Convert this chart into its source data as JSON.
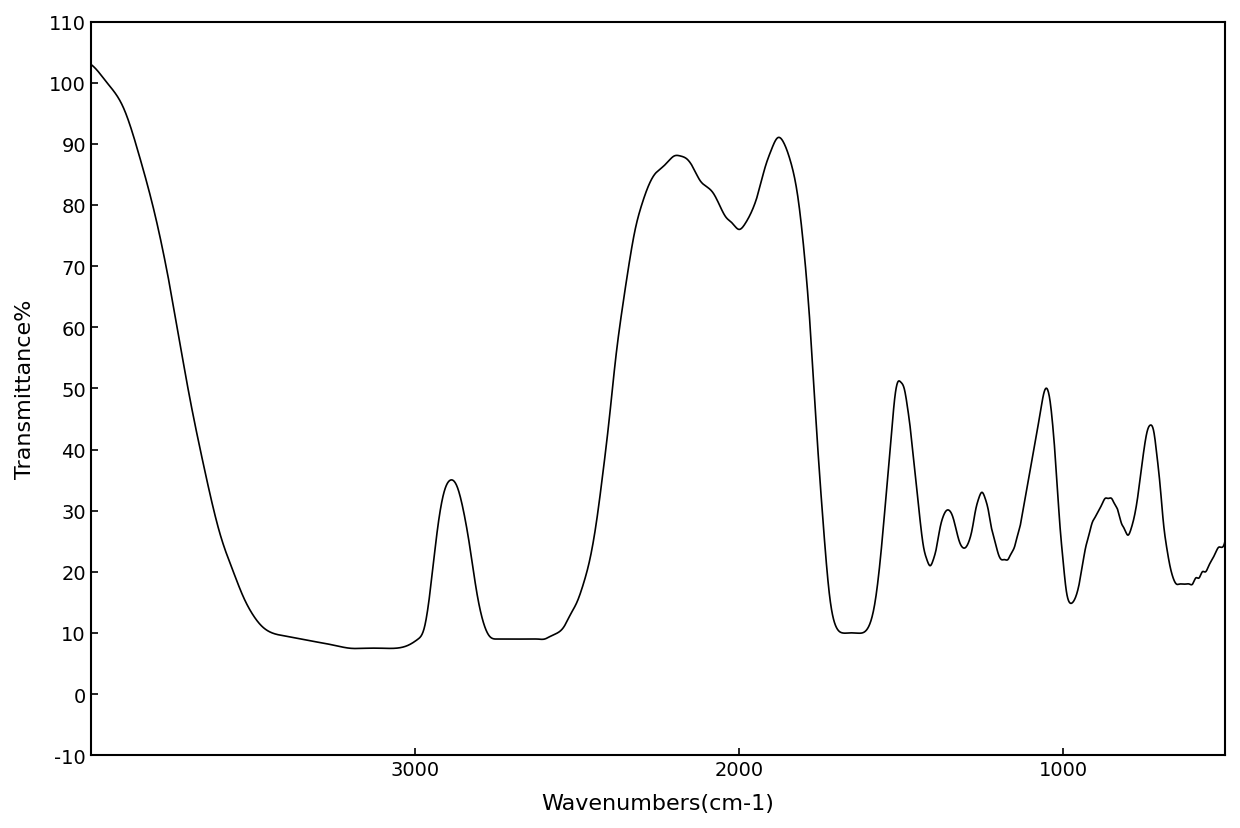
{
  "xlabel": "Wavenumbers(cm-1)",
  "ylabel": "Transmittance%",
  "xlim": [
    4000,
    500
  ],
  "ylim": [
    -10,
    110
  ],
  "yticks": [
    -10,
    0,
    10,
    20,
    30,
    40,
    50,
    60,
    70,
    80,
    90,
    100,
    110
  ],
  "xticks": [
    3000,
    2000,
    1000
  ],
  "line_color": "#000000",
  "background_color": "#ffffff",
  "keypoints": [
    [
      4000,
      103
    ],
    [
      3980,
      102
    ],
    [
      3950,
      100
    ],
    [
      3900,
      96
    ],
    [
      3850,
      88
    ],
    [
      3800,
      78
    ],
    [
      3750,
      65
    ],
    [
      3700,
      50
    ],
    [
      3650,
      37
    ],
    [
      3600,
      26
    ],
    [
      3560,
      20
    ],
    [
      3530,
      16
    ],
    [
      3500,
      13
    ],
    [
      3470,
      11
    ],
    [
      3440,
      10
    ],
    [
      3400,
      9.5
    ],
    [
      3350,
      9
    ],
    [
      3300,
      8.5
    ],
    [
      3250,
      8
    ],
    [
      3200,
      7.5
    ],
    [
      3150,
      7.5
    ],
    [
      3100,
      7.5
    ],
    [
      3060,
      7.5
    ],
    [
      3020,
      8
    ],
    [
      2990,
      9
    ],
    [
      2970,
      11
    ],
    [
      2950,
      18
    ],
    [
      2930,
      27
    ],
    [
      2910,
      33
    ],
    [
      2890,
      35
    ],
    [
      2870,
      34
    ],
    [
      2850,
      30
    ],
    [
      2830,
      24
    ],
    [
      2810,
      17
    ],
    [
      2790,
      12
    ],
    [
      2770,
      9.5
    ],
    [
      2750,
      9
    ],
    [
      2730,
      9
    ],
    [
      2700,
      9
    ],
    [
      2680,
      9
    ],
    [
      2660,
      9
    ],
    [
      2640,
      9
    ],
    [
      2620,
      9
    ],
    [
      2600,
      9
    ],
    [
      2580,
      9.5
    ],
    [
      2560,
      10
    ],
    [
      2540,
      11
    ],
    [
      2520,
      13
    ],
    [
      2500,
      15
    ],
    [
      2480,
      18
    ],
    [
      2460,
      22
    ],
    [
      2440,
      28
    ],
    [
      2420,
      36
    ],
    [
      2400,
      45
    ],
    [
      2380,
      55
    ],
    [
      2360,
      63
    ],
    [
      2340,
      70
    ],
    [
      2320,
      76
    ],
    [
      2300,
      80
    ],
    [
      2280,
      83
    ],
    [
      2260,
      85
    ],
    [
      2240,
      86
    ],
    [
      2220,
      87
    ],
    [
      2200,
      88
    ],
    [
      2180,
      88
    ],
    [
      2160,
      87.5
    ],
    [
      2140,
      86
    ],
    [
      2120,
      84
    ],
    [
      2100,
      83
    ],
    [
      2080,
      82
    ],
    [
      2060,
      80
    ],
    [
      2040,
      78
    ],
    [
      2020,
      77
    ],
    [
      2000,
      76
    ],
    [
      1980,
      77
    ],
    [
      1960,
      79
    ],
    [
      1940,
      82
    ],
    [
      1920,
      86
    ],
    [
      1900,
      89
    ],
    [
      1880,
      91
    ],
    [
      1860,
      90
    ],
    [
      1840,
      87
    ],
    [
      1820,
      82
    ],
    [
      1800,
      73
    ],
    [
      1780,
      60
    ],
    [
      1760,
      43
    ],
    [
      1740,
      28
    ],
    [
      1720,
      16
    ],
    [
      1700,
      11
    ],
    [
      1680,
      10
    ],
    [
      1660,
      10
    ],
    [
      1640,
      10
    ],
    [
      1620,
      10
    ],
    [
      1600,
      11
    ],
    [
      1580,
      15
    ],
    [
      1560,
      24
    ],
    [
      1540,
      36
    ],
    [
      1530,
      42
    ],
    [
      1520,
      48
    ],
    [
      1510,
      51
    ],
    [
      1500,
      51
    ],
    [
      1490,
      50
    ],
    [
      1480,
      47
    ],
    [
      1470,
      43
    ],
    [
      1460,
      38
    ],
    [
      1450,
      33
    ],
    [
      1440,
      28
    ],
    [
      1430,
      24
    ],
    [
      1420,
      22
    ],
    [
      1410,
      21
    ],
    [
      1400,
      22
    ],
    [
      1390,
      24
    ],
    [
      1380,
      27
    ],
    [
      1370,
      29
    ],
    [
      1360,
      30
    ],
    [
      1350,
      30
    ],
    [
      1340,
      29
    ],
    [
      1330,
      27
    ],
    [
      1320,
      25
    ],
    [
      1310,
      24
    ],
    [
      1300,
      24
    ],
    [
      1290,
      25
    ],
    [
      1280,
      27
    ],
    [
      1270,
      30
    ],
    [
      1260,
      32
    ],
    [
      1250,
      33
    ],
    [
      1240,
      32
    ],
    [
      1230,
      30
    ],
    [
      1220,
      27
    ],
    [
      1210,
      25
    ],
    [
      1200,
      23
    ],
    [
      1190,
      22
    ],
    [
      1180,
      22
    ],
    [
      1170,
      22
    ],
    [
      1160,
      23
    ],
    [
      1150,
      24
    ],
    [
      1140,
      26
    ],
    [
      1130,
      28
    ],
    [
      1120,
      31
    ],
    [
      1110,
      34
    ],
    [
      1100,
      37
    ],
    [
      1090,
      40
    ],
    [
      1080,
      43
    ],
    [
      1070,
      46
    ],
    [
      1060,
      49
    ],
    [
      1050,
      50
    ],
    [
      1040,
      48
    ],
    [
      1030,
      43
    ],
    [
      1020,
      36
    ],
    [
      1010,
      28
    ],
    [
      1000,
      22
    ],
    [
      990,
      17
    ],
    [
      980,
      15
    ],
    [
      970,
      15
    ],
    [
      960,
      16
    ],
    [
      950,
      18
    ],
    [
      940,
      21
    ],
    [
      930,
      24
    ],
    [
      920,
      26
    ],
    [
      910,
      28
    ],
    [
      900,
      29
    ],
    [
      890,
      30
    ],
    [
      880,
      31
    ],
    [
      870,
      32
    ],
    [
      860,
      32
    ],
    [
      850,
      32
    ],
    [
      840,
      31
    ],
    [
      830,
      30
    ],
    [
      820,
      28
    ],
    [
      810,
      27
    ],
    [
      800,
      26
    ],
    [
      790,
      27
    ],
    [
      780,
      29
    ],
    [
      770,
      32
    ],
    [
      760,
      36
    ],
    [
      750,
      40
    ],
    [
      740,
      43
    ],
    [
      730,
      44
    ],
    [
      720,
      43
    ],
    [
      710,
      39
    ],
    [
      700,
      34
    ],
    [
      690,
      28
    ],
    [
      680,
      24
    ],
    [
      670,
      21
    ],
    [
      660,
      19
    ],
    [
      650,
      18
    ],
    [
      640,
      18
    ],
    [
      630,
      18
    ],
    [
      620,
      18
    ],
    [
      610,
      18
    ],
    [
      600,
      18
    ],
    [
      590,
      19
    ],
    [
      580,
      19
    ],
    [
      570,
      20
    ],
    [
      560,
      20
    ],
    [
      550,
      21
    ],
    [
      540,
      22
    ],
    [
      530,
      23
    ],
    [
      520,
      24
    ],
    [
      510,
      24
    ],
    [
      500,
      25
    ]
  ]
}
